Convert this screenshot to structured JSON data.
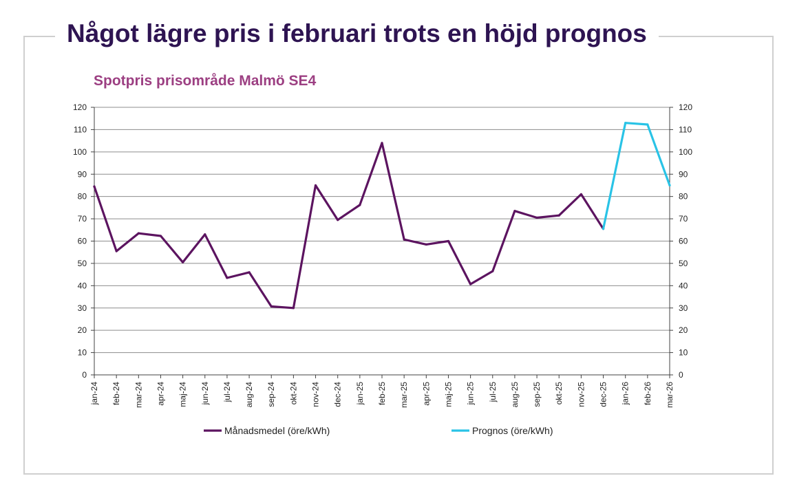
{
  "headline": "Något lägre pris i februari trots en höjd prognos",
  "chart_data": {
    "type": "line",
    "title": "Spotpris prisområde Malmö SE4",
    "xlabel": "",
    "ylabel": "",
    "ylim": [
      0,
      120
    ],
    "yticks": [
      0,
      10,
      20,
      30,
      40,
      50,
      60,
      70,
      80,
      90,
      100,
      110,
      120
    ],
    "secondary_y_axis": true,
    "grid": true,
    "legend_position": "bottom",
    "categories": [
      "jan-24",
      "feb-24",
      "mar-24",
      "apr-24",
      "maj-24",
      "jun-24",
      "jul-24",
      "aug-24",
      "sep-24",
      "okt-24",
      "nov-24",
      "dec-24",
      "jan-25",
      "feb-25",
      "mar-25",
      "apr-25",
      "maj-25",
      "jun-25",
      "jul-25",
      "aug-25",
      "sep-25",
      "okt-25",
      "nov-25",
      "dec-25",
      "jan-26",
      "feb-26",
      "mar-26"
    ],
    "series": [
      {
        "name": "Månadsmedel (öre/kWh)",
        "color": "#5c1460",
        "values": [
          84.5,
          55.5,
          63.5,
          62.3,
          50.5,
          63,
          43.5,
          46,
          30.7,
          30,
          85,
          69.5,
          76.2,
          104,
          60.7,
          58.5,
          60,
          40.7,
          46.5,
          73.5,
          70.5,
          71.5,
          81,
          65.5,
          null,
          null,
          null
        ]
      },
      {
        "name": "Prognos (öre/kWh)",
        "color": "#29c3e6",
        "values": [
          null,
          null,
          null,
          null,
          null,
          null,
          null,
          null,
          null,
          null,
          null,
          null,
          null,
          null,
          null,
          null,
          null,
          null,
          null,
          null,
          null,
          null,
          null,
          65.5,
          113,
          112.3,
          85
        ]
      }
    ]
  },
  "colors": {
    "headline": "#2e1452",
    "subtitle": "#9c3f82",
    "grid": "#8c8c8c",
    "axis": "#404040"
  }
}
